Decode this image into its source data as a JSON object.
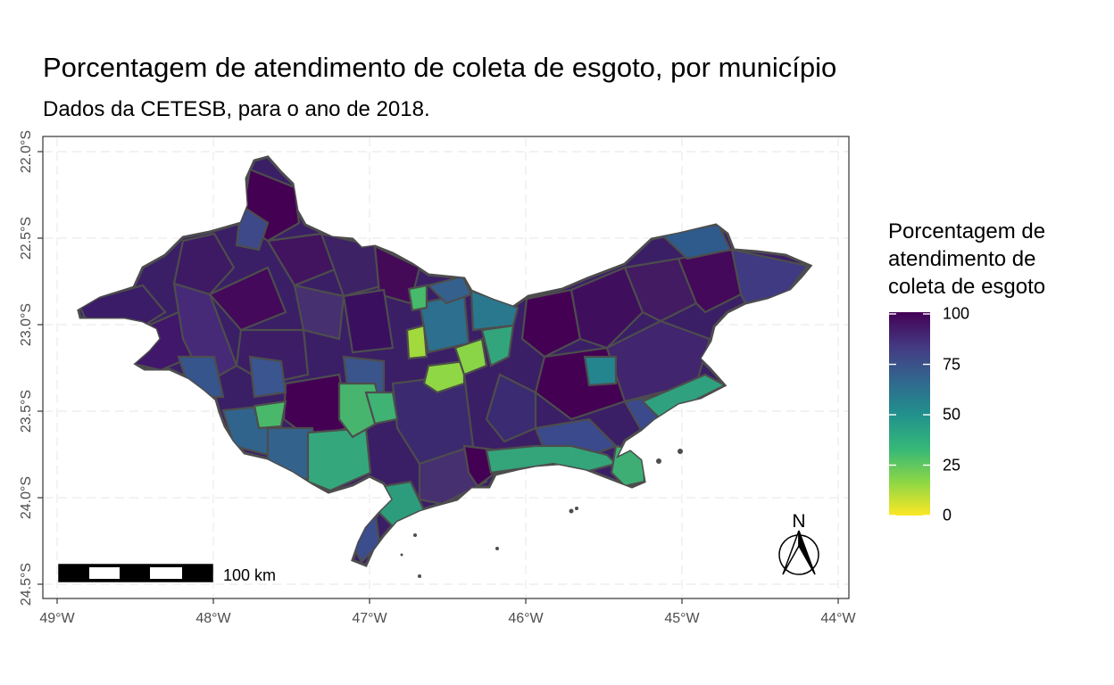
{
  "title": "Porcentagem de atendimento de coleta de esgoto, por município",
  "subtitle": "Dados da CETESB, para o ano de 2018.",
  "x_axis": {
    "ticks": [
      "49°W",
      "48°W",
      "47°W",
      "46°W",
      "45°W",
      "44°W"
    ],
    "values": [
      -49,
      -48,
      -47,
      -46,
      -45,
      -44
    ],
    "range": [
      -49.0,
      -43.9
    ]
  },
  "y_axis": {
    "ticks": [
      "22.0°S",
      "22.5°S",
      "23.0°S",
      "23.5°S",
      "24.0°S",
      "24.5°S"
    ],
    "values": [
      -22.0,
      -22.5,
      -23.0,
      -23.5,
      -24.0,
      -24.5
    ],
    "range": [
      -24.6,
      -21.9
    ]
  },
  "legend": {
    "title": "Porcentagem de\natendimento de\ncoleta de esgoto",
    "breaks": [
      "100",
      "75",
      "50",
      "25",
      "0"
    ],
    "break_values": [
      100,
      75,
      50,
      25,
      0
    ],
    "palette": "viridis",
    "colors": [
      "#fde725",
      "#8fd744",
      "#35b779",
      "#21908d",
      "#31688e",
      "#443a83",
      "#440154"
    ]
  },
  "scale_bar": {
    "label": "100 km"
  },
  "north_arrow": {
    "label": "N"
  },
  "colors": {
    "border": "#4d4d4d",
    "grid": "#ebebeb",
    "panel_border": "#333333"
  }
}
